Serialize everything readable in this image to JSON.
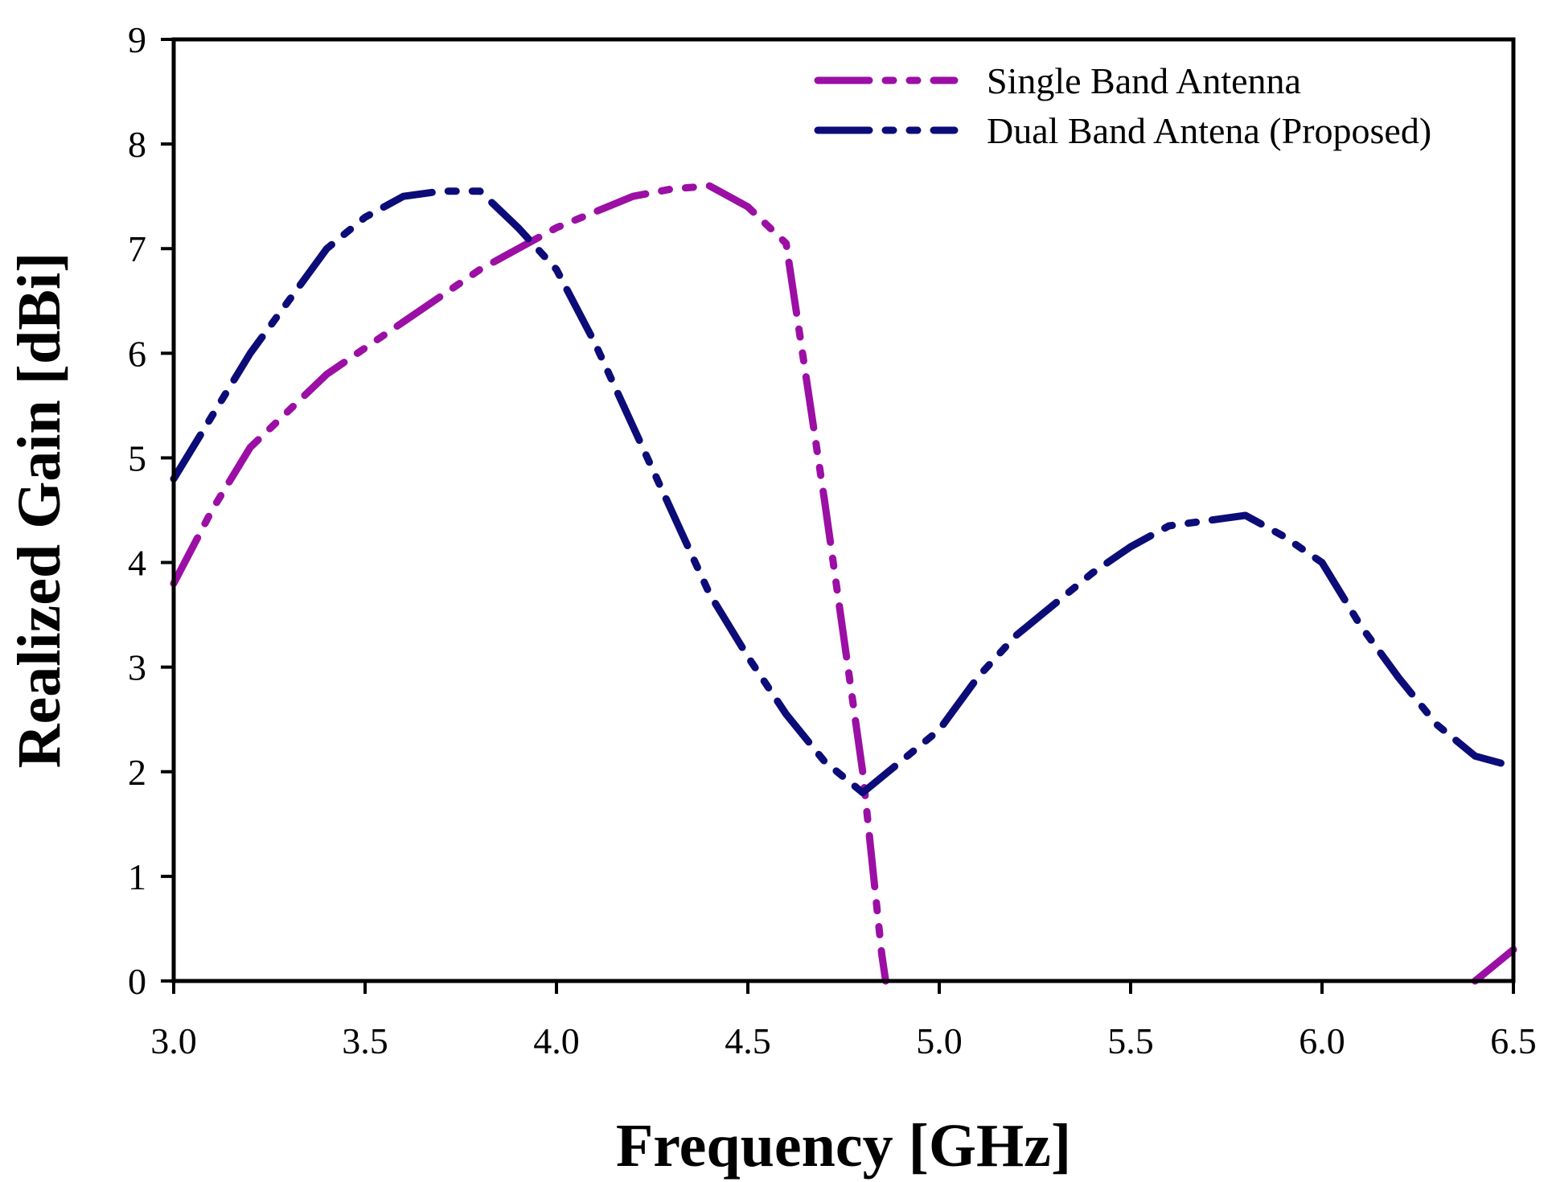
{
  "chart_data": {
    "type": "line",
    "xlabel": "Frequency [GHz]",
    "ylabel": "Realized Gain [dBi]",
    "xlim": [
      3.0,
      6.5
    ],
    "ylim": [
      0,
      9
    ],
    "xticks": [
      "3.0",
      "3.5",
      "4.0",
      "4.5",
      "5.0",
      "5.5",
      "6.0",
      "6.5"
    ],
    "yticks": [
      "0",
      "1",
      "2",
      "3",
      "4",
      "5",
      "6",
      "7",
      "8",
      "9"
    ],
    "grid": false,
    "legend_position": "top-right",
    "series": [
      {
        "name": "Single Band Antenna",
        "color": "#9b0fa5",
        "x": [
          3.0,
          3.1,
          3.2,
          3.3,
          3.4,
          3.5,
          3.6,
          3.7,
          3.8,
          3.9,
          4.0,
          4.1,
          4.2,
          4.3,
          4.4,
          4.5,
          4.6,
          4.7,
          4.8,
          4.85,
          4.86
        ],
        "y": [
          3.8,
          4.5,
          5.1,
          5.45,
          5.8,
          6.05,
          6.3,
          6.55,
          6.8,
          7.0,
          7.2,
          7.35,
          7.5,
          7.57,
          7.6,
          7.4,
          7.05,
          4.6,
          2.0,
          0.25,
          0.0
        ]
      },
      {
        "name": "Single Band Antenna",
        "color": "#9b0fa5",
        "x": [
          6.4,
          6.5
        ],
        "y": [
          0.0,
          0.3
        ]
      },
      {
        "name": "Dual Band Antena (Proposed)",
        "color": "#0c0c78",
        "x": [
          3.0,
          3.1,
          3.2,
          3.3,
          3.4,
          3.5,
          3.6,
          3.7,
          3.8,
          3.9,
          4.0,
          4.1,
          4.2,
          4.3,
          4.4,
          4.5,
          4.6,
          4.7,
          4.8,
          4.9,
          5.0,
          5.1,
          5.2,
          5.3,
          5.4,
          5.5,
          5.6,
          5.7,
          5.8,
          5.9,
          6.0,
          6.1,
          6.2,
          6.3,
          6.4,
          6.5
        ],
        "y": [
          4.8,
          5.4,
          6.0,
          6.5,
          7.0,
          7.3,
          7.5,
          7.55,
          7.55,
          7.2,
          6.8,
          6.1,
          5.3,
          4.5,
          3.7,
          3.1,
          2.55,
          2.1,
          1.8,
          2.1,
          2.4,
          2.9,
          3.3,
          3.6,
          3.9,
          4.15,
          4.35,
          4.4,
          4.45,
          4.25,
          4.0,
          3.4,
          2.9,
          2.45,
          2.15,
          2.05
        ]
      }
    ],
    "legend": [
      {
        "label": "Single Band Antenna",
        "color": "#9b0fa5"
      },
      {
        "label": "Dual Band Antena (Proposed)",
        "color": "#0c0c78"
      }
    ]
  }
}
